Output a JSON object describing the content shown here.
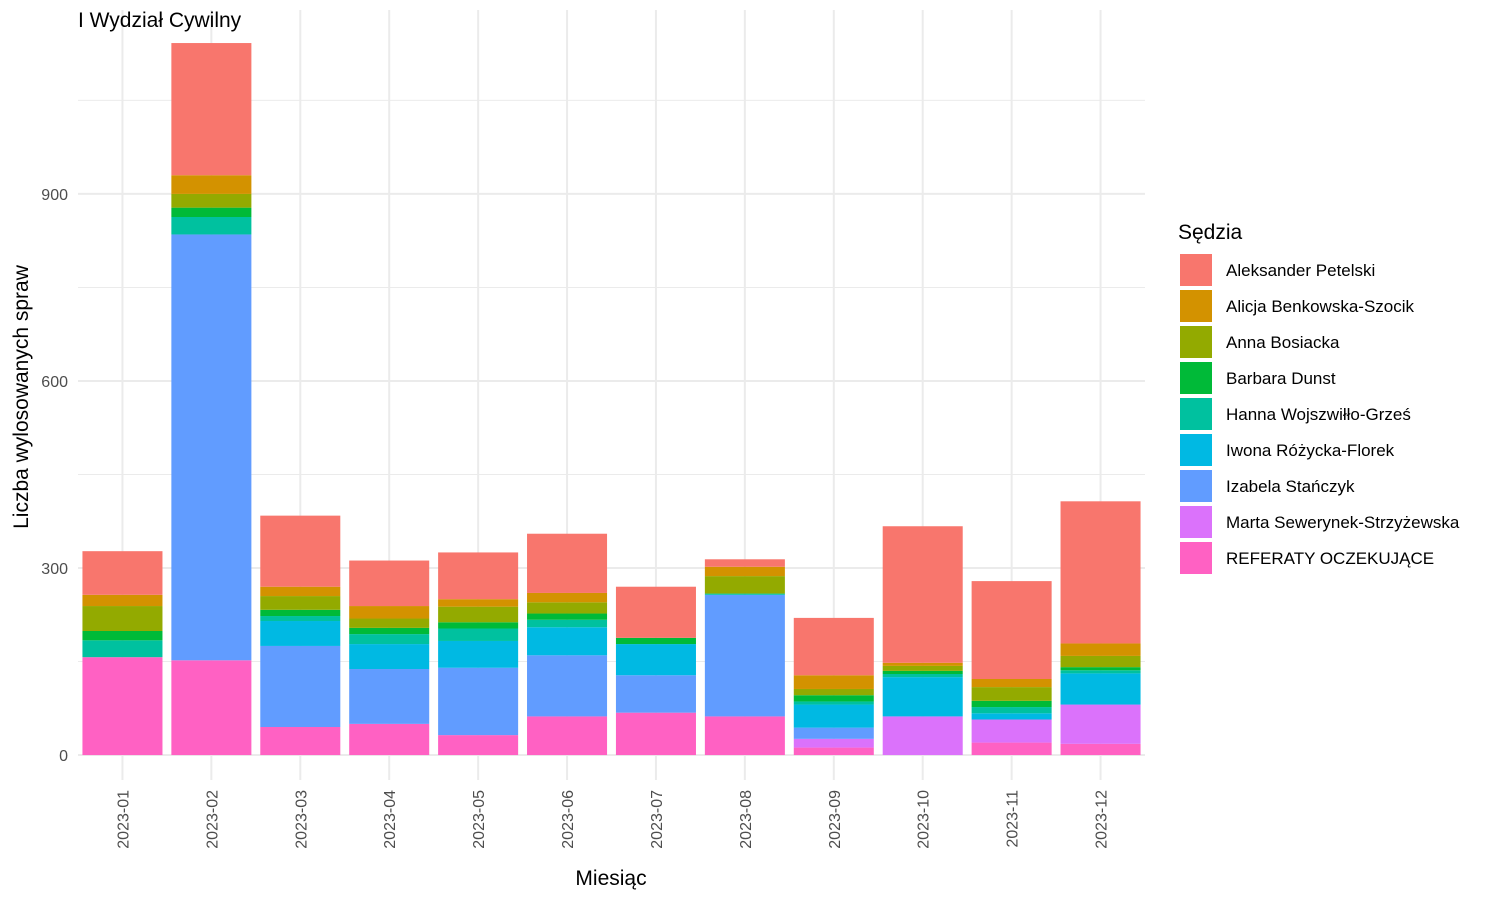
{
  "chart_data": {
    "type": "bar",
    "stacked": true,
    "title": "I Wydział Cywilny",
    "xlabel": "Miesiąc",
    "ylabel": "Liczba wylosowanych spraw",
    "ylim": [
      -40,
      1195
    ],
    "yticks": [
      0,
      300,
      600,
      900
    ],
    "grid": true,
    "legend_position": "right",
    "legend_title": "Sędzia",
    "categories": [
      "2023-01",
      "2023-02",
      "2023-03",
      "2023-04",
      "2023-05",
      "2023-06",
      "2023-07",
      "2023-08",
      "2023-09",
      "2023-10",
      "2023-11",
      "2023-12"
    ],
    "series": [
      {
        "name": "REFERATY OCZEKUJĄCE",
        "color": "#FF61C3",
        "values": [
          157,
          152,
          45,
          50,
          32,
          62,
          68,
          62,
          12,
          0,
          20,
          18
        ]
      },
      {
        "name": "Marta Sewerynek-Strzyżewska",
        "color": "#DB72FB",
        "values": [
          0,
          0,
          0,
          0,
          0,
          0,
          0,
          0,
          14,
          62,
          37,
          63
        ]
      },
      {
        "name": "Izabela Stańczyk",
        "color": "#619CFF",
        "values": [
          0,
          683,
          130,
          88,
          108,
          98,
          60,
          195,
          18,
          0,
          0,
          0
        ]
      },
      {
        "name": "Iwona Różycka-Florek",
        "color": "#00B9E3",
        "values": [
          0,
          0,
          40,
          40,
          43,
          45,
          50,
          0,
          37,
          63,
          10,
          50
        ]
      },
      {
        "name": "Hanna Wojszwiłło-Grześ",
        "color": "#00C19F",
        "values": [
          27,
          28,
          8,
          16,
          20,
          12,
          0,
          2,
          5,
          5,
          10,
          5
        ]
      },
      {
        "name": "Barbara Dunst",
        "color": "#00BA38",
        "values": [
          15,
          15,
          10,
          10,
          10,
          10,
          10,
          0,
          10,
          5,
          10,
          5
        ]
      },
      {
        "name": "Anna Bosiacka",
        "color": "#93AA00",
        "values": [
          40,
          22,
          22,
          15,
          25,
          18,
          0,
          28,
          10,
          8,
          22,
          18
        ]
      },
      {
        "name": "Alicja Benkowska-Szocik",
        "color": "#D39200",
        "values": [
          18,
          30,
          15,
          20,
          12,
          15,
          0,
          15,
          22,
          5,
          13,
          20
        ]
      },
      {
        "name": "Aleksander Petelski",
        "color": "#F8766D",
        "values": [
          70,
          212,
          114,
          73,
          75,
          95,
          82,
          12,
          92,
          219,
          157,
          228
        ]
      }
    ],
    "legend_order": [
      "Aleksander Petelski",
      "Alicja Benkowska-Szocik",
      "Anna Bosiacka",
      "Barbara Dunst",
      "Hanna Wojszwiłło-Grześ",
      "Iwona Różycka-Florek",
      "Izabela Stańczyk",
      "Marta Sewerynek-Strzyżewska",
      "REFERATY OCZEKUJĄCE"
    ]
  }
}
